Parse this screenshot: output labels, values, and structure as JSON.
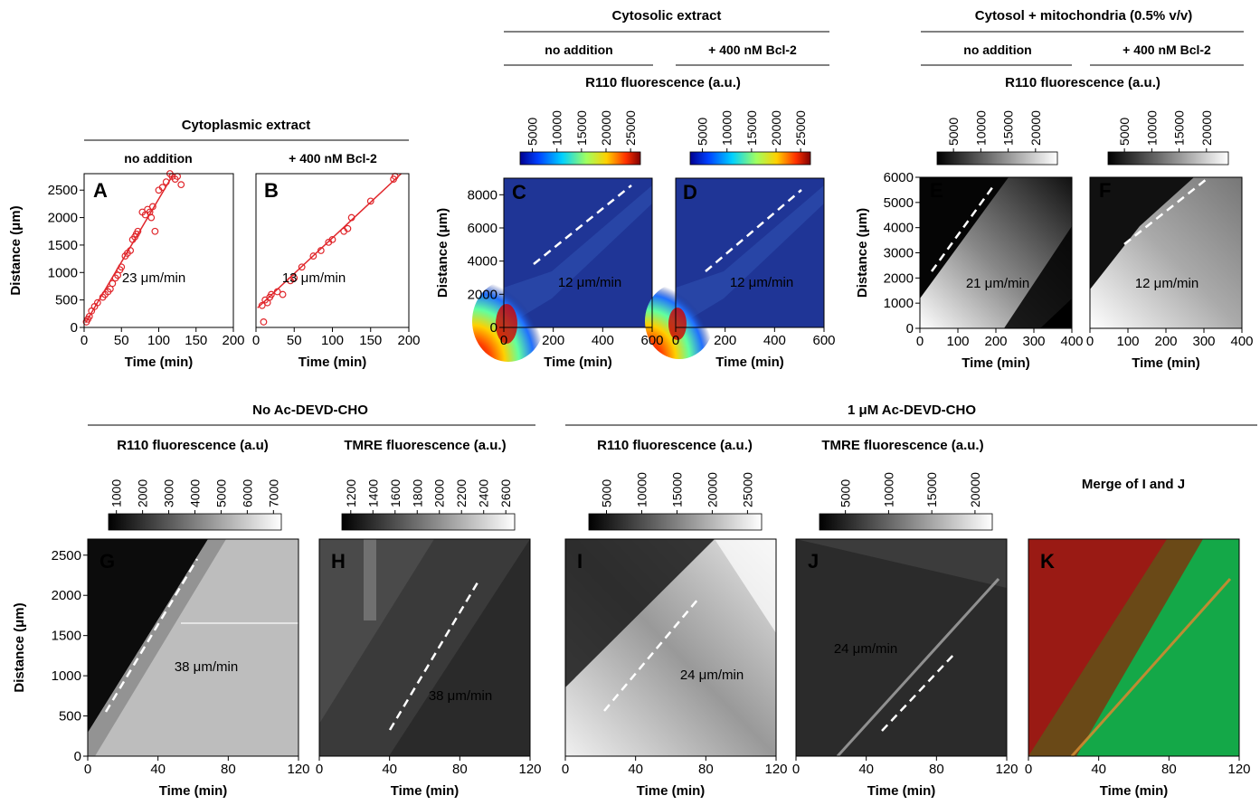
{
  "groups": {
    "cyto_title": "Cytoplasmic extract",
    "cyto_sub1": "no addition",
    "cyto_sub2": "+ 400 nM Bcl-2",
    "cytosol_title": "Cytosolic extract",
    "cytosol_sub1": "no addition",
    "cytosol_sub2": "+ 400 nM Bcl-2",
    "mito_title": "Cytosol + mitochondria (0.5% v/v)",
    "mito_sub1": "no addition",
    "mito_sub2": "+ 400 nM Bcl-2",
    "noac_title": "No Ac-DEVD-CHO",
    "ac_title": "1 μM Ac-DEVD-CHO",
    "merge_label": "Merge of I and J"
  },
  "colorbar_titles": {
    "cd": "R110 fluorescence (a.u.)",
    "ef": "R110 fluorescence (a.u.)",
    "g": "R110 fluorescence (a.u)",
    "h": "TMRE fluorescence (a.u.)",
    "i": "R110 fluorescence (a.u.)",
    "j": "TMRE fluorescence (a.u.)"
  },
  "colorbar_ticks": {
    "cd": [
      "5000",
      "10000",
      "15000",
      "20000",
      "25000"
    ],
    "ef": [
      "5000",
      "10000",
      "15000",
      "20000"
    ],
    "g": [
      "1000",
      "2000",
      "3000",
      "4000",
      "5000",
      "6000",
      "7000"
    ],
    "h": [
      "1200",
      "1400",
      "1600",
      "1800",
      "2000",
      "2200",
      "2400",
      "2600"
    ],
    "i": [
      "5000",
      "10000",
      "15000",
      "20000",
      "25000"
    ],
    "j": [
      "5000",
      "10000",
      "15000",
      "20000"
    ]
  },
  "colors": {
    "scatter_red": "#e0262b",
    "jet": [
      "#00008f",
      "#0050ff",
      "#00d0ff",
      "#80ff80",
      "#ffd000",
      "#ff3000",
      "#800000"
    ],
    "dark_blue_bg": "#1a2f8f",
    "merge_red": "#b0201a",
    "merge_green": "#10c050"
  },
  "chart_data": [
    {
      "panel": "A",
      "type": "scatter",
      "xlabel": "Time (min)",
      "ylabel": "Distance (μm)",
      "xlim": [
        0,
        200
      ],
      "ylim": [
        0,
        2800
      ],
      "xticks": [
        "0",
        "50",
        "100",
        "150",
        "200"
      ],
      "yticks": [
        "0",
        "500",
        "1000",
        "1500",
        "2000",
        "2500"
      ],
      "annotation": "23 μm/min",
      "x": [
        3,
        5,
        7,
        10,
        14,
        18,
        25,
        28,
        32,
        35,
        38,
        42,
        45,
        48,
        50,
        55,
        58,
        62,
        65,
        68,
        70,
        72,
        78,
        82,
        85,
        88,
        90,
        92,
        95,
        100,
        105,
        110,
        115,
        118,
        122,
        125,
        130
      ],
      "y": [
        100,
        150,
        200,
        300,
        380,
        450,
        550,
        600,
        650,
        700,
        800,
        900,
        950,
        1050,
        1100,
        1300,
        1350,
        1400,
        1600,
        1650,
        1700,
        1750,
        2100,
        2050,
        2150,
        2100,
        2000,
        2200,
        1750,
        2500,
        2550,
        2650,
        2800,
        2750,
        2700,
        2750,
        2600
      ],
      "fit": {
        "slope": 23,
        "intercept": 40
      }
    },
    {
      "panel": "B",
      "type": "scatter",
      "xlabel": "Time (min)",
      "xlim": [
        0,
        200
      ],
      "ylim": [
        0,
        2800
      ],
      "xticks": [
        "0",
        "50",
        "100",
        "150",
        "200"
      ],
      "annotation": "13 μm/min",
      "x": [
        8,
        10,
        12,
        15,
        18,
        20,
        28,
        35,
        45,
        50,
        60,
        75,
        85,
        95,
        100,
        115,
        120,
        125,
        150,
        180,
        182
      ],
      "y": [
        400,
        100,
        500,
        450,
        550,
        600,
        650,
        600,
        850,
        900,
        1100,
        1300,
        1400,
        1550,
        1600,
        1750,
        1800,
        2000,
        2300,
        2700,
        2750
      ],
      "fit": {
        "slope": 13,
        "intercept": 330
      }
    },
    {
      "panel": "C",
      "type": "heatmap",
      "xlabel": "Time (min)",
      "ylabel": "Distance (μm)",
      "xlim": [
        0,
        600
      ],
      "ylim": [
        0,
        9000
      ],
      "xticks": [
        "0",
        "200",
        "400",
        "600"
      ],
      "yticks": [
        "0",
        "2000",
        "4000",
        "6000",
        "8000"
      ],
      "annotation": "12 μm/min"
    },
    {
      "panel": "D",
      "type": "heatmap",
      "xlabel": "Time (min)",
      "xlim": [
        0,
        600
      ],
      "ylim": [
        0,
        9000
      ],
      "xticks": [
        "0",
        "200",
        "400",
        "600"
      ],
      "annotation": "12 μm/min"
    },
    {
      "panel": "E",
      "type": "heatmap",
      "xlabel": "Time (min)",
      "ylabel": "Distance (μm)",
      "xlim": [
        0,
        400
      ],
      "ylim": [
        0,
        6000
      ],
      "xticks": [
        "0",
        "100",
        "200",
        "300",
        "400"
      ],
      "yticks": [
        "0",
        "1000",
        "2000",
        "3000",
        "4000",
        "5000",
        "6000"
      ],
      "annotation": "21 μm/min"
    },
    {
      "panel": "F",
      "type": "heatmap",
      "xlabel": "Time (min)",
      "xlim": [
        0,
        400
      ],
      "ylim": [
        0,
        6000
      ],
      "xticks": [
        "0",
        "100",
        "200",
        "300",
        "400"
      ],
      "annotation": "12 μm/min"
    },
    {
      "panel": "G",
      "type": "heatmap",
      "xlabel": "Time (min)",
      "ylabel": "Distance (μm)",
      "xlim": [
        0,
        120
      ],
      "ylim": [
        0,
        2700
      ],
      "xticks": [
        "0",
        "40",
        "80",
        "120"
      ],
      "yticks": [
        "0",
        "500",
        "1000",
        "1500",
        "2000",
        "2500"
      ],
      "annotation": "38 μm/min"
    },
    {
      "panel": "H",
      "type": "heatmap",
      "xlabel": "Time (min)",
      "xlim": [
        0,
        120
      ],
      "ylim": [
        0,
        2700
      ],
      "xticks": [
        "0",
        "40",
        "80",
        "120"
      ],
      "annotation": "38 μm/min"
    },
    {
      "panel": "I",
      "type": "heatmap",
      "xlabel": "Time (min)",
      "xlim": [
        0,
        120
      ],
      "ylim": [
        0,
        2700
      ],
      "xticks": [
        "0",
        "40",
        "80",
        "120"
      ],
      "annotation": "24 μm/min"
    },
    {
      "panel": "J",
      "type": "heatmap",
      "xlabel": "Time (min)",
      "xlim": [
        0,
        120
      ],
      "ylim": [
        0,
        2700
      ],
      "xticks": [
        "0",
        "40",
        "80",
        "120"
      ],
      "annotation": "24 μm/min"
    },
    {
      "panel": "K",
      "type": "heatmap",
      "xlabel": "Time (min)",
      "xlim": [
        0,
        120
      ],
      "ylim": [
        0,
        2700
      ],
      "xticks": [
        "0",
        "40",
        "80",
        "120"
      ]
    }
  ]
}
